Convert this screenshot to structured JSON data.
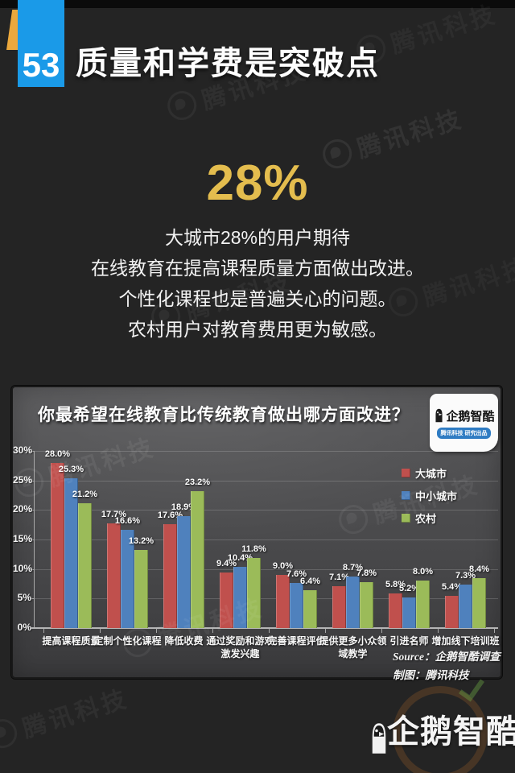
{
  "page": {
    "number": "53",
    "title": "质量和学费是突破点",
    "background": "#242424",
    "accent_blue": "#1A9AE8",
    "accent_yellow": "#ECA83C"
  },
  "highlight": {
    "stat": "28%",
    "stat_color": "#E4BD4E",
    "lines": [
      "大城市28%的用户期待",
      "在线教育在提高课程质量方面做出改进。",
      "个性化课程也是普遍关心的问题。",
      "农村用户对教育费用更为敏感。"
    ]
  },
  "chart_panel": {
    "title": "你最希望在线教育比传统教育做出哪方面改进？",
    "badge": {
      "name": "企鹅智酷",
      "tagline": "腾讯科技 研究出品"
    },
    "source_line1": "Source：企鹅智酷调查",
    "source_line2": "制图：腾讯科技",
    "categories_display": [
      "提高课程质量",
      "定制个性化课程",
      "降低收费",
      "通过奖励和游戏\n激发兴趣",
      "完善课程评价",
      "提供更多小众领\n域教学",
      "引进名师",
      "增加线下培训班"
    ]
  },
  "chart_data": {
    "type": "bar",
    "title": "你最希望在线教育比传统教育做出哪方面改进？",
    "categories": [
      "提高课程质量",
      "定制个性化课程",
      "降低收费",
      "通过奖励和游戏激发兴趣",
      "完善课程评价",
      "提供更多小众领域教学",
      "引进名师",
      "增加线下培训班"
    ],
    "series": [
      {
        "name": "大城市",
        "color": "#C0504D",
        "values": [
          28.0,
          17.7,
          17.6,
          9.4,
          9.0,
          7.1,
          5.8,
          5.4
        ]
      },
      {
        "name": "中小城市",
        "color": "#4F81BD",
        "values": [
          25.3,
          16.6,
          18.9,
          10.4,
          7.6,
          8.7,
          5.2,
          7.3
        ]
      },
      {
        "name": "农村",
        "color": "#9BBB59",
        "values": [
          21.2,
          13.2,
          23.2,
          11.8,
          6.4,
          7.8,
          8.0,
          8.4
        ]
      }
    ],
    "xlabel": "",
    "ylabel": "",
    "ylim": [
      0,
      30
    ],
    "y_tick_step": 5,
    "y_tick_format": "{v}%",
    "value_label_format": "{v}%",
    "grid": true,
    "legend_position": "inside-right"
  },
  "watermark": {
    "text": "腾讯科技"
  },
  "footer": {
    "logo_text": "企鹅智酷"
  }
}
